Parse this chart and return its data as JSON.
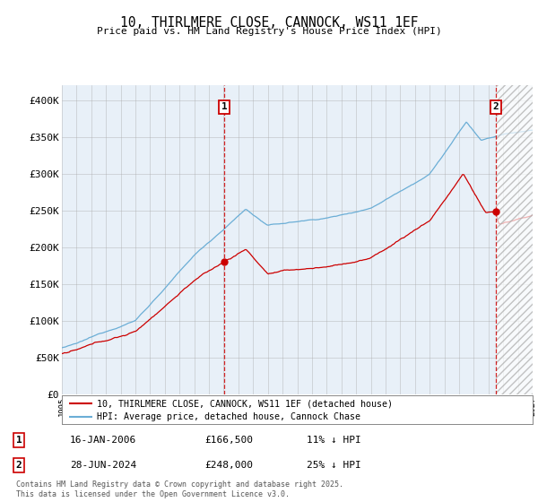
{
  "title": "10, THIRLMERE CLOSE, CANNOCK, WS11 1EF",
  "subtitle": "Price paid vs. HM Land Registry's House Price Index (HPI)",
  "ylim": [
    0,
    420000
  ],
  "yticks": [
    0,
    50000,
    100000,
    150000,
    200000,
    250000,
    300000,
    350000,
    400000
  ],
  "ytick_labels": [
    "£0",
    "£50K",
    "£100K",
    "£150K",
    "£200K",
    "£250K",
    "£300K",
    "£350K",
    "£400K"
  ],
  "hpi_color": "#6baed6",
  "price_color": "#cc0000",
  "marker1_x": 2006.04,
  "marker2_x": 2024.49,
  "marker1_label": "1",
  "marker2_label": "2",
  "legend_line1": "10, THIRLMERE CLOSE, CANNOCK, WS11 1EF (detached house)",
  "legend_line2": "HPI: Average price, detached house, Cannock Chase",
  "annotation1_date": "16-JAN-2006",
  "annotation1_price": "£166,500",
  "annotation1_hpi": "11% ↓ HPI",
  "annotation2_date": "28-JUN-2024",
  "annotation2_price": "£248,000",
  "annotation2_hpi": "25% ↓ HPI",
  "footer": "Contains HM Land Registry data © Crown copyright and database right 2025.\nThis data is licensed under the Open Government Licence v3.0.",
  "bg_color": "#ffffff",
  "chart_bg": "#e8f0f8",
  "grid_color": "#aaaaaa",
  "xmin": 1995,
  "xmax": 2027
}
